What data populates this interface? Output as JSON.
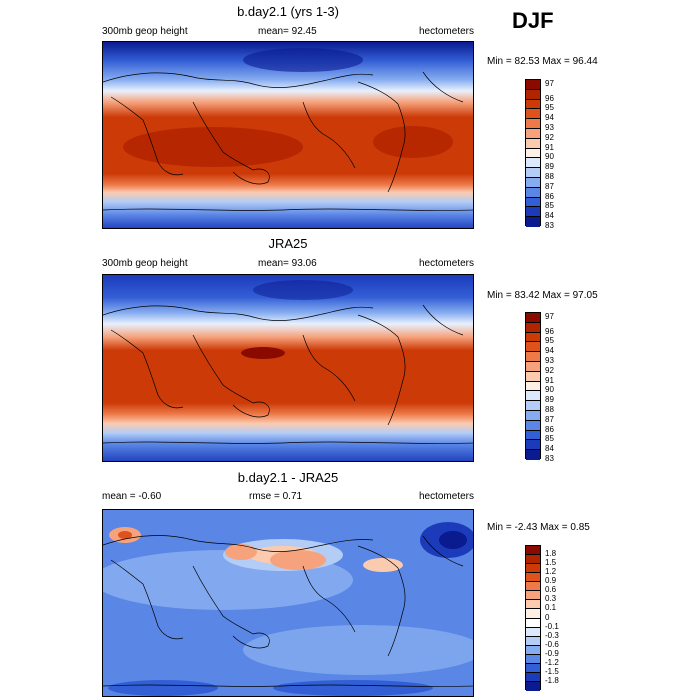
{
  "season": "DJF",
  "panels": [
    {
      "title": "b.day2.1 (yrs 1-3)",
      "left_label": "300mb geop height",
      "mid_label": "mean=  92.45",
      "right_label": "hectometers",
      "minmax": "Min = 82.53 Max =  96.44",
      "colorbar_labels": [
        "97",
        "96",
        "95",
        "94",
        "93",
        "92",
        "91",
        "90",
        "89",
        "88",
        "87",
        "86",
        "85",
        "84",
        "83"
      ],
      "colors": [
        "#8b0a00",
        "#b12400",
        "#cc3a08",
        "#e0521c",
        "#ee7a4a",
        "#f6a27c",
        "#fbcbb0",
        "#fdf0e6",
        "#dce9fb",
        "#b3cdf6",
        "#86acf0",
        "#5a86e6",
        "#335fd6",
        "#1c3bbb",
        "#0a1a8f"
      ]
    },
    {
      "title": "JRA25",
      "left_label": "300mb geop height",
      "mid_label": "mean=  93.06",
      "right_label": "hectometers",
      "minmax": "Min = 83.42 Max =  97.05",
      "colorbar_labels": [
        "97",
        "96",
        "95",
        "94",
        "93",
        "92",
        "91",
        "90",
        "89",
        "88",
        "87",
        "86",
        "85",
        "84",
        "83"
      ],
      "colors": [
        "#8b0a00",
        "#b12400",
        "#cc3a08",
        "#e0521c",
        "#ee7a4a",
        "#f6a27c",
        "#fbcbb0",
        "#fdf0e6",
        "#dce9fb",
        "#b3cdf6",
        "#86acf0",
        "#5a86e6",
        "#335fd6",
        "#1c3bbb",
        "#0a1a8f"
      ]
    },
    {
      "title": "b.day2.1 - JRA25",
      "left_label": "mean =  -0.60",
      "mid_label": "rmse =   0.71",
      "right_label": "hectometers",
      "minmax": "Min = -2.43 Max =   0.85",
      "colorbar_labels": [
        "1.8",
        "1.5",
        "1.2",
        "0.9",
        "0.6",
        "0.3",
        "0.1",
        "0",
        "-0.1",
        "-0.3",
        "-0.6",
        "-0.9",
        "-1.2",
        "-1.5",
        "-1.8"
      ],
      "colors": [
        "#8b0a00",
        "#b12400",
        "#cc3a08",
        "#e0521c",
        "#ee7a4a",
        "#f6a27c",
        "#fbcbb0",
        "#fdf0e6",
        "#ffffff",
        "#dce9fb",
        "#b3cdf6",
        "#86acf0",
        "#5a86e6",
        "#335fd6",
        "#1c3bbb",
        "#0a1a8f"
      ]
    }
  ]
}
